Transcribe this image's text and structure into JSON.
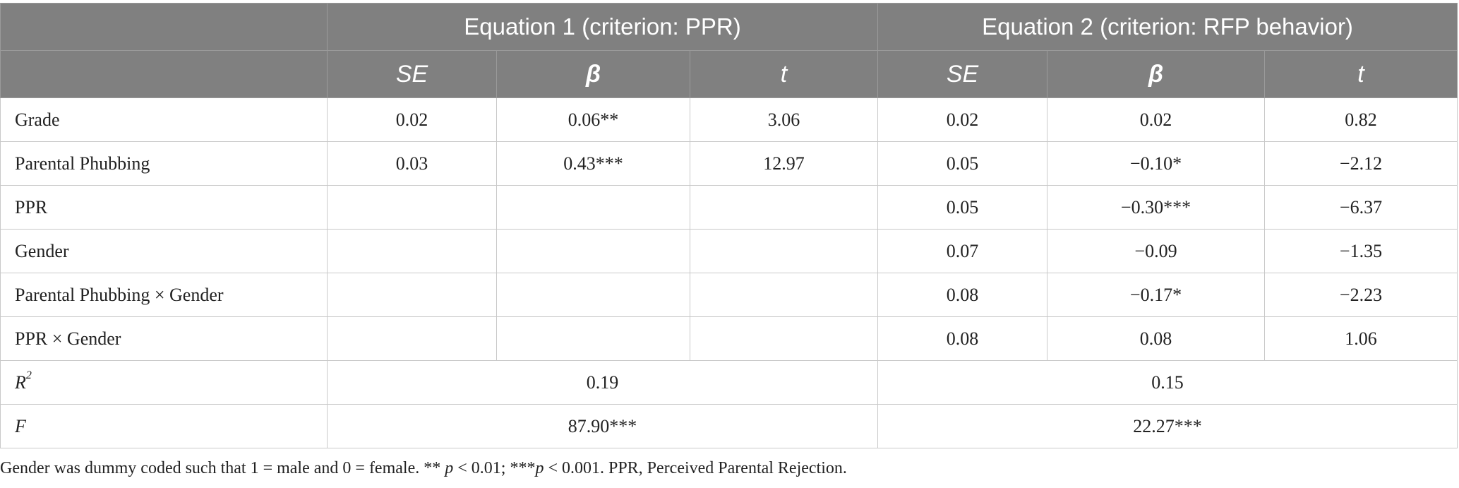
{
  "table": {
    "eq1_title": "Equation 1 (criterion: PPR)",
    "eq2_title": "Equation 2 (criterion: RFP behavior)",
    "col_headers": [
      "SE",
      "β",
      "t",
      "SE",
      "β",
      "t"
    ],
    "rows": [
      {
        "label": "Grade",
        "cells": [
          "0.02",
          "0.06**",
          "3.06",
          "0.02",
          "0.02",
          "0.82"
        ]
      },
      {
        "label": "Parental Phubbing",
        "cells": [
          "0.03",
          "0.43***",
          "12.97",
          "0.05",
          "−0.10*",
          "−2.12"
        ]
      },
      {
        "label": "PPR",
        "cells": [
          "",
          "",
          "",
          "0.05",
          "−0.30***",
          "−6.37"
        ]
      },
      {
        "label": "Gender",
        "cells": [
          "",
          "",
          "",
          "0.07",
          "−0.09",
          "−1.35"
        ]
      },
      {
        "label": "Parental Phubbing × Gender",
        "cells": [
          "",
          "",
          "",
          "0.08",
          "−0.17*",
          "−2.23"
        ]
      },
      {
        "label": "PPR × Gender",
        "cells": [
          "",
          "",
          "",
          "0.08",
          "0.08",
          "1.06"
        ]
      }
    ],
    "r2": {
      "label": "R",
      "label_sup": "2",
      "eq1": "0.19",
      "eq2": "0.15"
    },
    "f": {
      "label": "F",
      "eq1": "87.90***",
      "eq2": "22.27***"
    }
  },
  "note": {
    "part1": "Gender was dummy coded such that 1 = male and 0 = female. ** ",
    "p1": "p",
    "part2": " < 0.01; ***",
    "p2": "p",
    "part3": " < 0.001. PPR, Perceived Parental Rejection."
  }
}
